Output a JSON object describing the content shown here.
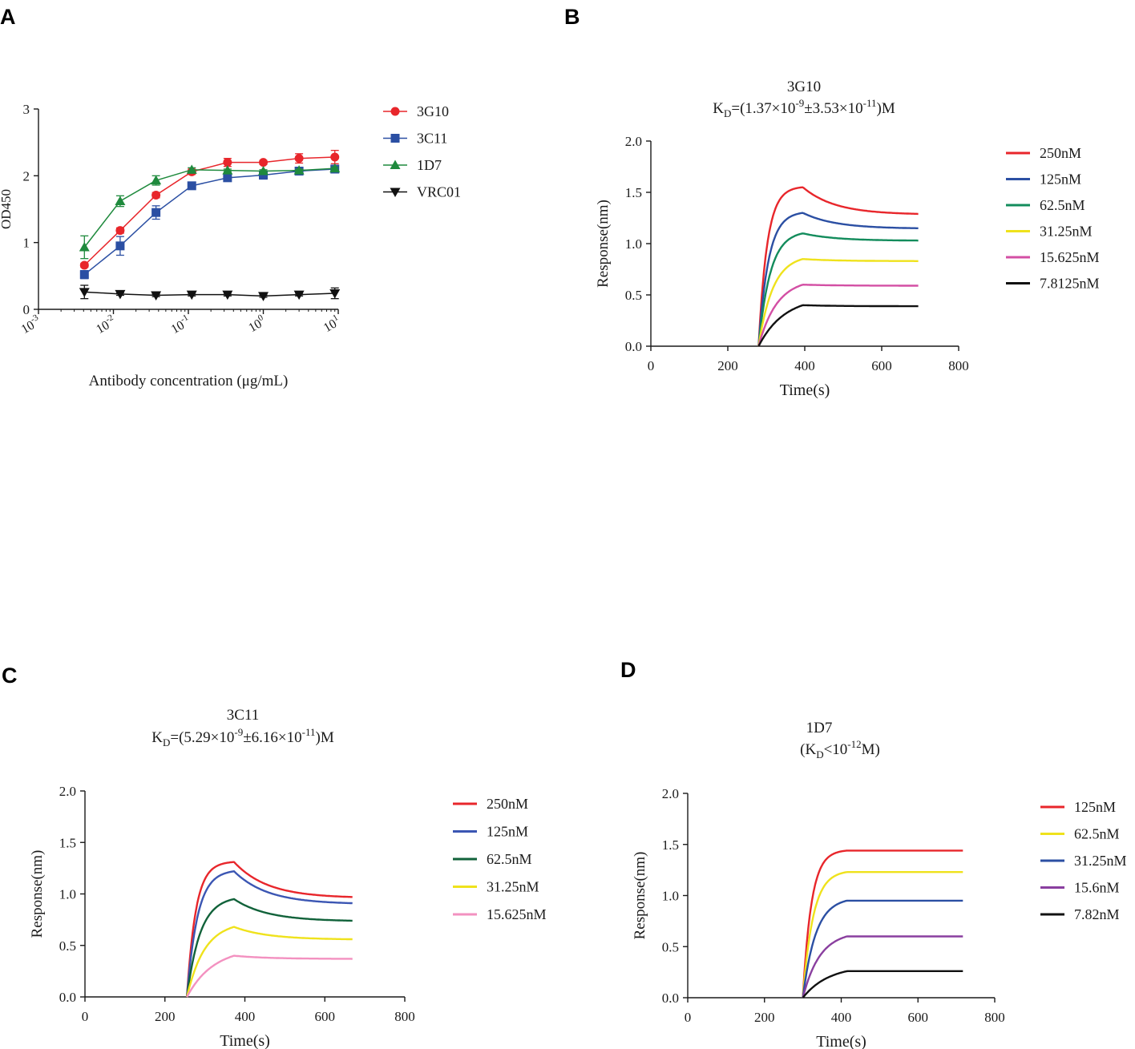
{
  "colors": {
    "red": "#e8262b",
    "blue": "#2b4fa3",
    "green": "#1f8a3d",
    "black": "#111111",
    "b_green": "#138c5c",
    "yellow": "#efe21c",
    "magenta": "#d34fa4",
    "c_blue": "#3b56b3",
    "c_green": "#11623a",
    "pink": "#f391c0",
    "purple": "#8a3f9f"
  },
  "chart_data": [
    {
      "panel": "A",
      "type": "scatter",
      "title": "",
      "xlabel": "Antibody concentration (μg/mL)",
      "ylabel": "OD450",
      "xscale": "log",
      "xlim": [
        0.001,
        10
      ],
      "ylim": [
        0,
        3
      ],
      "yticks": [
        "0",
        "1",
        "2",
        "3"
      ],
      "xticks": [
        {
          "base": "10",
          "exp": "-3"
        },
        {
          "base": "10",
          "exp": "-2"
        },
        {
          "base": "10",
          "exp": "-1"
        },
        {
          "base": "10",
          "exp": "0"
        },
        {
          "base": "10",
          "exp": "1"
        }
      ],
      "x": [
        0.0041,
        0.0123,
        0.037,
        0.111,
        0.333,
        1.0,
        3.0,
        9.0
      ],
      "series": [
        {
          "name": "3G10",
          "color_key": "red",
          "marker": "circle",
          "values": [
            0.66,
            1.18,
            1.71,
            2.06,
            2.2,
            2.2,
            2.26,
            2.28
          ],
          "errors": [
            0.03,
            0.04,
            0.04,
            0.04,
            0.06,
            0.03,
            0.07,
            0.1
          ]
        },
        {
          "name": "3C11",
          "color_key": "blue",
          "marker": "square",
          "values": [
            0.52,
            0.95,
            1.45,
            1.85,
            1.97,
            2.01,
            2.07,
            2.1
          ],
          "errors": [
            0.06,
            0.14,
            0.1,
            0.03,
            0.05,
            0.06,
            0.05,
            0.03
          ]
        },
        {
          "name": "1D7",
          "color_key": "green",
          "marker": "triangle-up",
          "values": [
            0.93,
            1.62,
            1.93,
            2.09,
            2.08,
            2.07,
            2.08,
            2.11
          ],
          "errors": [
            0.17,
            0.08,
            0.07,
            0.03,
            0.02,
            0.02,
            0.02,
            0.02
          ]
        },
        {
          "name": "VRC01",
          "color_key": "black",
          "marker": "triangle-down",
          "values": [
            0.26,
            0.23,
            0.21,
            0.22,
            0.22,
            0.2,
            0.22,
            0.24
          ],
          "errors": [
            0.1,
            0.02,
            0.02,
            0.02,
            0.02,
            0.02,
            0.02,
            0.08
          ]
        }
      ]
    },
    {
      "panel": "B",
      "type": "line",
      "title": "3G10",
      "kd": {
        "prefix": "K",
        "sub": "D",
        "a": "=(1.37×10",
        "e1": "-9",
        "b": "±3.53×10",
        "e2": "-11",
        "c": ")M"
      },
      "xlabel": "Time(s)",
      "ylabel": "Response(nm)",
      "xlim": [
        0,
        800
      ],
      "ylim": [
        0,
        2.0
      ],
      "xticks": [
        "0",
        "200",
        "400",
        "600",
        "800"
      ],
      "yticks": [
        "0.0",
        "0.5",
        "1.0",
        "1.5",
        "2.0"
      ],
      "t_start": 280,
      "t_switch": 395,
      "t_end": 695,
      "series": [
        {
          "name": "250nM",
          "color_key": "red",
          "peak": 1.55,
          "final": 1.29
        },
        {
          "name": "125nM",
          "color_key": "blue",
          "peak": 1.3,
          "final": 1.15
        },
        {
          "name": "62.5nM",
          "color_key": "b_green",
          "peak": 1.1,
          "final": 1.03
        },
        {
          "name": "31.25nM",
          "color_key": "yellow",
          "peak": 0.85,
          "final": 0.83
        },
        {
          "name": "15.625nM",
          "color_key": "magenta",
          "peak": 0.6,
          "final": 0.59
        },
        {
          "name": "7.8125nM",
          "color_key": "black",
          "peak": 0.4,
          "final": 0.39
        }
      ]
    },
    {
      "panel": "C",
      "type": "line",
      "title": "3C11",
      "kd": {
        "prefix": "K",
        "sub": "D",
        "a": "=(5.29×10",
        "e1": "-9",
        "b": "±6.16×10",
        "e2": "-11",
        "c": ")M"
      },
      "xlabel": "Time(s)",
      "ylabel": "Response(nm)",
      "xlim": [
        0,
        800
      ],
      "ylim": [
        0,
        2.0
      ],
      "xticks": [
        "0",
        "200",
        "400",
        "600",
        "800"
      ],
      "yticks": [
        "0.0",
        "0.5",
        "1.0",
        "1.5",
        "2.0"
      ],
      "t_start": 255,
      "t_switch": 373,
      "t_end": 670,
      "series": [
        {
          "name": "250nM",
          "color_key": "red",
          "peak": 1.31,
          "final": 0.97
        },
        {
          "name": "125nM",
          "color_key": "c_blue",
          "peak": 1.22,
          "final": 0.91
        },
        {
          "name": "62.5nM",
          "color_key": "c_green",
          "peak": 0.95,
          "final": 0.74
        },
        {
          "name": "31.25nM",
          "color_key": "yellow",
          "peak": 0.68,
          "final": 0.56
        },
        {
          "name": "15.625nM",
          "color_key": "pink",
          "peak": 0.4,
          "final": 0.37
        }
      ]
    },
    {
      "panel": "D",
      "type": "line",
      "title": "1D7",
      "kd": {
        "prefix": "(K",
        "sub": "D",
        "a": "<10",
        "e1": "-12",
        "b": "M)",
        "e2": "",
        "c": ""
      },
      "xlabel": "Time(s)",
      "ylabel": "Response(nm)",
      "xlim": [
        0,
        800
      ],
      "ylim": [
        0,
        2.0
      ],
      "xticks": [
        "0",
        "200",
        "400",
        "600",
        "800"
      ],
      "yticks": [
        "0.0",
        "0.5",
        "1.0",
        "1.5",
        "2.0"
      ],
      "t_start": 300,
      "t_switch": 415,
      "t_end": 718,
      "series": [
        {
          "name": "125nM",
          "color_key": "red",
          "peak": 1.44,
          "final": 1.44
        },
        {
          "name": "62.5nM",
          "color_key": "yellow",
          "peak": 1.23,
          "final": 1.23
        },
        {
          "name": "31.25nM",
          "color_key": "blue",
          "peak": 0.95,
          "final": 0.95
        },
        {
          "name": "15.6nM",
          "color_key": "purple",
          "peak": 0.6,
          "final": 0.6
        },
        {
          "name": "7.82nM",
          "color_key": "black",
          "peak": 0.26,
          "final": 0.26
        }
      ]
    }
  ]
}
